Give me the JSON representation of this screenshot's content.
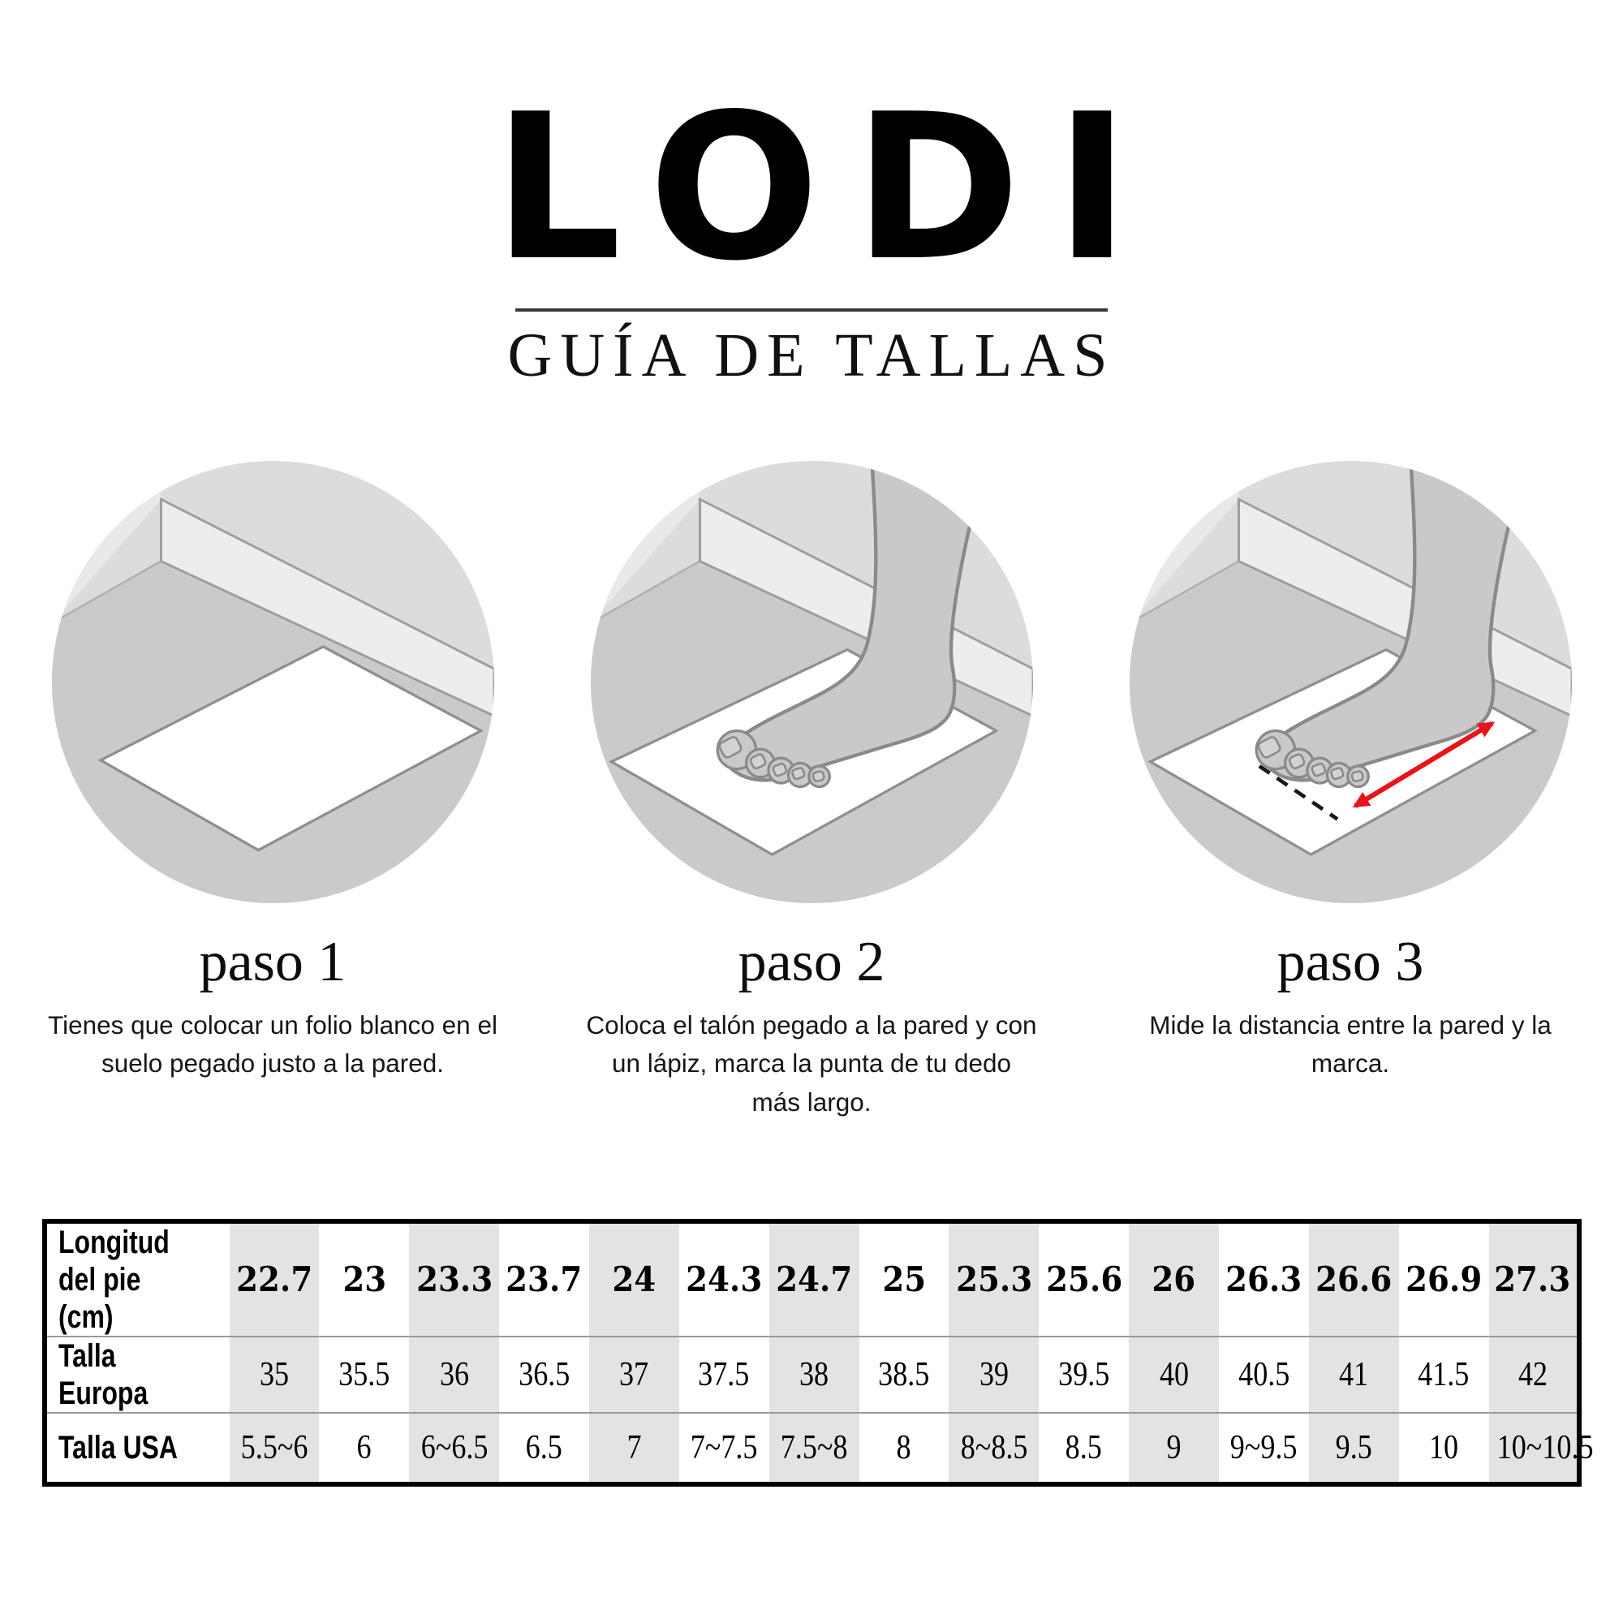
{
  "brand": {
    "logo": "LODI",
    "subtitle": "GUÍA DE TALLAS"
  },
  "steps": [
    {
      "title": "paso 1",
      "description": "Tienes que colocar un folio blanco en el suelo pegado justo a la pared.",
      "illustration": "paper-on-floor-against-wall"
    },
    {
      "title": "paso 2",
      "description": "Coloca el talón pegado a la pared y con un lápiz, marca la punta de tu dedo más largo.",
      "illustration": "foot-on-paper-heel-against-wall"
    },
    {
      "title": "paso 3",
      "description": "Mide la distancia entre la pared y la marca.",
      "illustration": "foot-with-measuring-arrow"
    }
  ],
  "size_table": {
    "rows": [
      {
        "label": "Longitud\ndel pie (cm)",
        "values": [
          "22.7",
          "23",
          "23.3",
          "23.7",
          "24",
          "24.3",
          "24.7",
          "25",
          "25.3",
          "25.6",
          "26",
          "26.3",
          "26.6",
          "26.9",
          "27.3"
        ]
      },
      {
        "label": "Talla Europa",
        "values": [
          "35",
          "35.5",
          "36",
          "36.5",
          "37",
          "37.5",
          "38",
          "38.5",
          "39",
          "39.5",
          "40",
          "40.5",
          "41",
          "41.5",
          "42"
        ]
      },
      {
        "label": "Talla USA",
        "values": [
          "5.5~6",
          "6",
          "6~6.5",
          "6.5",
          "7",
          "7~7.5",
          "7.5~8",
          "8",
          "8~8.5",
          "8.5",
          "9",
          "9~9.5",
          "9.5",
          "10",
          "10~10.5"
        ]
      }
    ]
  },
  "colors": {
    "accent_red": "#e8141b",
    "table_shade": "#e3e3e3",
    "circle_wall": "#dcdcdc",
    "side_wall": "#e9e9e9",
    "baseboard": "#ededed",
    "floor": "#cacaca",
    "foot": "#c9c9c9",
    "outline_gray": "#8f8f8f",
    "rule_dark": "#383838"
  }
}
